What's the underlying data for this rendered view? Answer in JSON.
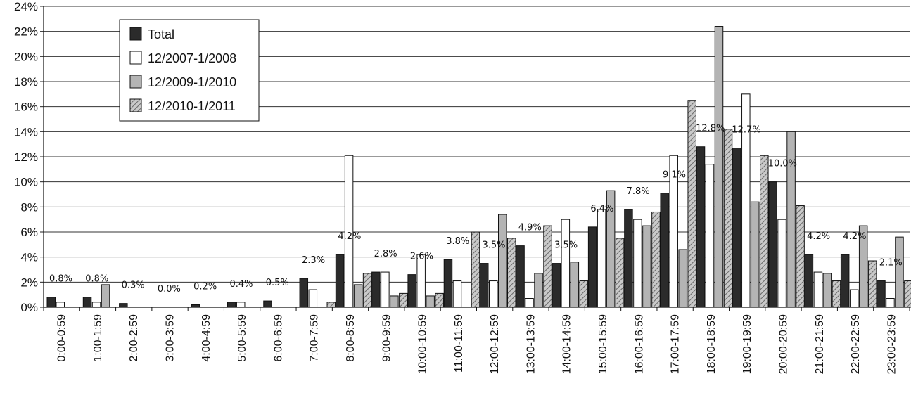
{
  "chart_data": {
    "type": "bar",
    "title": "",
    "xlabel": "",
    "ylabel": "",
    "ylim": [
      0,
      24
    ],
    "yticks": [
      "0%",
      "2%",
      "4%",
      "6%",
      "8%",
      "10%",
      "12%",
      "14%",
      "16%",
      "18%",
      "20%",
      "22%",
      "24%"
    ],
    "grid": "horizontal",
    "legend_position": "top-left",
    "categories": [
      "0:00-0:59",
      "1:00-1:59",
      "2:00-2:59",
      "3:00-3:59",
      "4:00-4:59",
      "5:00-5:59",
      "6:00-6:59",
      "7:00-7:59",
      "8:00-8:59",
      "9:00-9:59",
      "10:00-10:59",
      "11:00-11:59",
      "12:00-12:59",
      "13:00-13:59",
      "14:00-14:59",
      "15:00-15:59",
      "16:00-16:59",
      "17:00-17:59",
      "18:00-18:59",
      "19:00-19:59",
      "20:00-20:59",
      "21:00-21:59",
      "22:00-22:59",
      "23:00-23:59"
    ],
    "series": [
      {
        "name": "Total",
        "color": "#2b2b2b",
        "pattern": "solid",
        "values": [
          0.8,
          0.8,
          0.3,
          0.0,
          0.2,
          0.4,
          0.5,
          2.3,
          4.2,
          2.8,
          2.6,
          3.8,
          3.5,
          4.9,
          3.5,
          6.4,
          7.8,
          9.1,
          12.8,
          12.7,
          10.0,
          4.2,
          4.2,
          2.1
        ],
        "labels": [
          "0.8%",
          "0.8%",
          "0.3%",
          "0.0%",
          "0.2%",
          "0.4%",
          "0.5%",
          "2.3%",
          "4.2%",
          "2.8%",
          "2.6%",
          "3.8%",
          "3.5%",
          "4.9%",
          "3.5%",
          "6.4%",
          "7.8%",
          "9.1%",
          "12.8%",
          "12.7%",
          "10.0%",
          "4.2%",
          "4.2%",
          "2.1%"
        ]
      },
      {
        "name": "12/2007-1/2008",
        "color": "#ffffff",
        "pattern": "solid",
        "values": [
          0.4,
          0.4,
          0,
          0,
          0,
          0.4,
          0,
          1.4,
          12.1,
          2.8,
          4.2,
          2.1,
          2.1,
          0.7,
          7.0,
          7.8,
          7.0,
          12.1,
          11.4,
          17.0,
          7.0,
          2.8,
          1.4,
          0.7
        ]
      },
      {
        "name": "12/2009-1/2010",
        "color": "#b4b4b4",
        "pattern": "solid",
        "values": [
          0,
          1.8,
          0,
          0,
          0,
          0,
          0,
          0,
          1.8,
          0.9,
          0.9,
          0,
          7.4,
          2.7,
          3.6,
          9.3,
          6.5,
          4.6,
          22.4,
          8.4,
          14.0,
          2.7,
          6.5,
          5.6
        ]
      },
      {
        "name": "12/2010-1/2011",
        "color": "#bdbdbd",
        "pattern": "hatched",
        "values": [
          0,
          0,
          0,
          0,
          0,
          0,
          0,
          0.4,
          2.7,
          1.1,
          1.1,
          6.0,
          5.5,
          6.5,
          2.1,
          5.5,
          7.6,
          16.5,
          14.2,
          12.1,
          8.1,
          2.1,
          3.7,
          2.1
        ]
      }
    ]
  }
}
